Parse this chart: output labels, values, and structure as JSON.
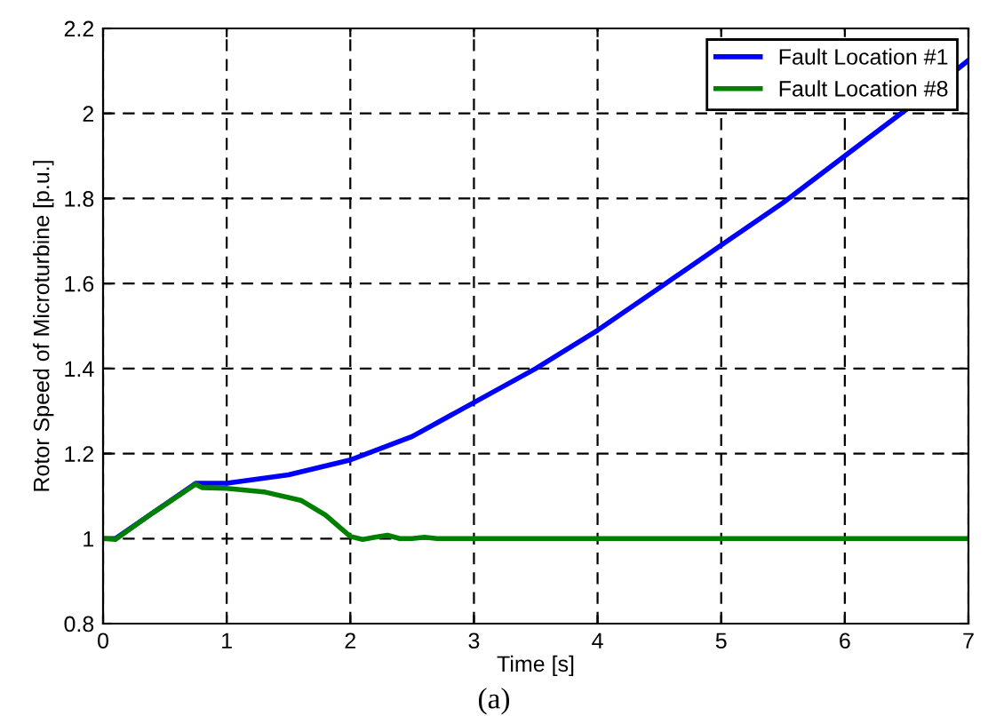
{
  "chart_data": {
    "type": "line",
    "xlabel": "Time [s]",
    "ylabel": "Rotor Speed of Microturbine [p.u.]",
    "annotations": [
      "(a)"
    ],
    "xlim": [
      0,
      7
    ],
    "xticks": [
      0,
      1,
      2,
      3,
      4,
      5,
      6,
      7
    ],
    "ylim": [
      0.8,
      2.2
    ],
    "yticks": [
      0.8,
      1,
      1.2,
      1.4,
      1.6,
      1.8,
      2,
      2.2
    ],
    "grid": true,
    "legend": "top right",
    "line_style": "solid",
    "marker": "none",
    "series": [
      {
        "name": "Fault Location #1",
        "color": "#0000ff",
        "x": [
          0,
          0.1,
          0.4,
          0.75,
          1,
          1.5,
          2,
          2.5,
          3,
          3.5,
          4,
          4.5,
          5,
          5.5,
          6,
          6.5,
          7
        ],
        "values": [
          1.0,
          1.0,
          1.06,
          1.13,
          1.13,
          1.15,
          1.185,
          1.24,
          1.32,
          1.4,
          1.49,
          1.59,
          1.69,
          1.79,
          1.9,
          2.01,
          2.125
        ]
      },
      {
        "name": "Fault Location #8",
        "color": "#008000",
        "x": [
          0,
          0.1,
          0.4,
          0.75,
          0.8,
          1,
          1.3,
          1.6,
          1.8,
          2.0,
          2.1,
          2.2,
          2.3,
          2.4,
          2.5,
          2.6,
          2.7,
          3,
          4,
          5,
          6,
          7
        ],
        "values": [
          1.0,
          0.998,
          1.06,
          1.128,
          1.12,
          1.118,
          1.11,
          1.09,
          1.055,
          1.005,
          0.998,
          1.003,
          1.008,
          1.0,
          1.0,
          1.003,
          1.0,
          1.0,
          1.0,
          1.0,
          1.0,
          1.0
        ]
      }
    ]
  }
}
